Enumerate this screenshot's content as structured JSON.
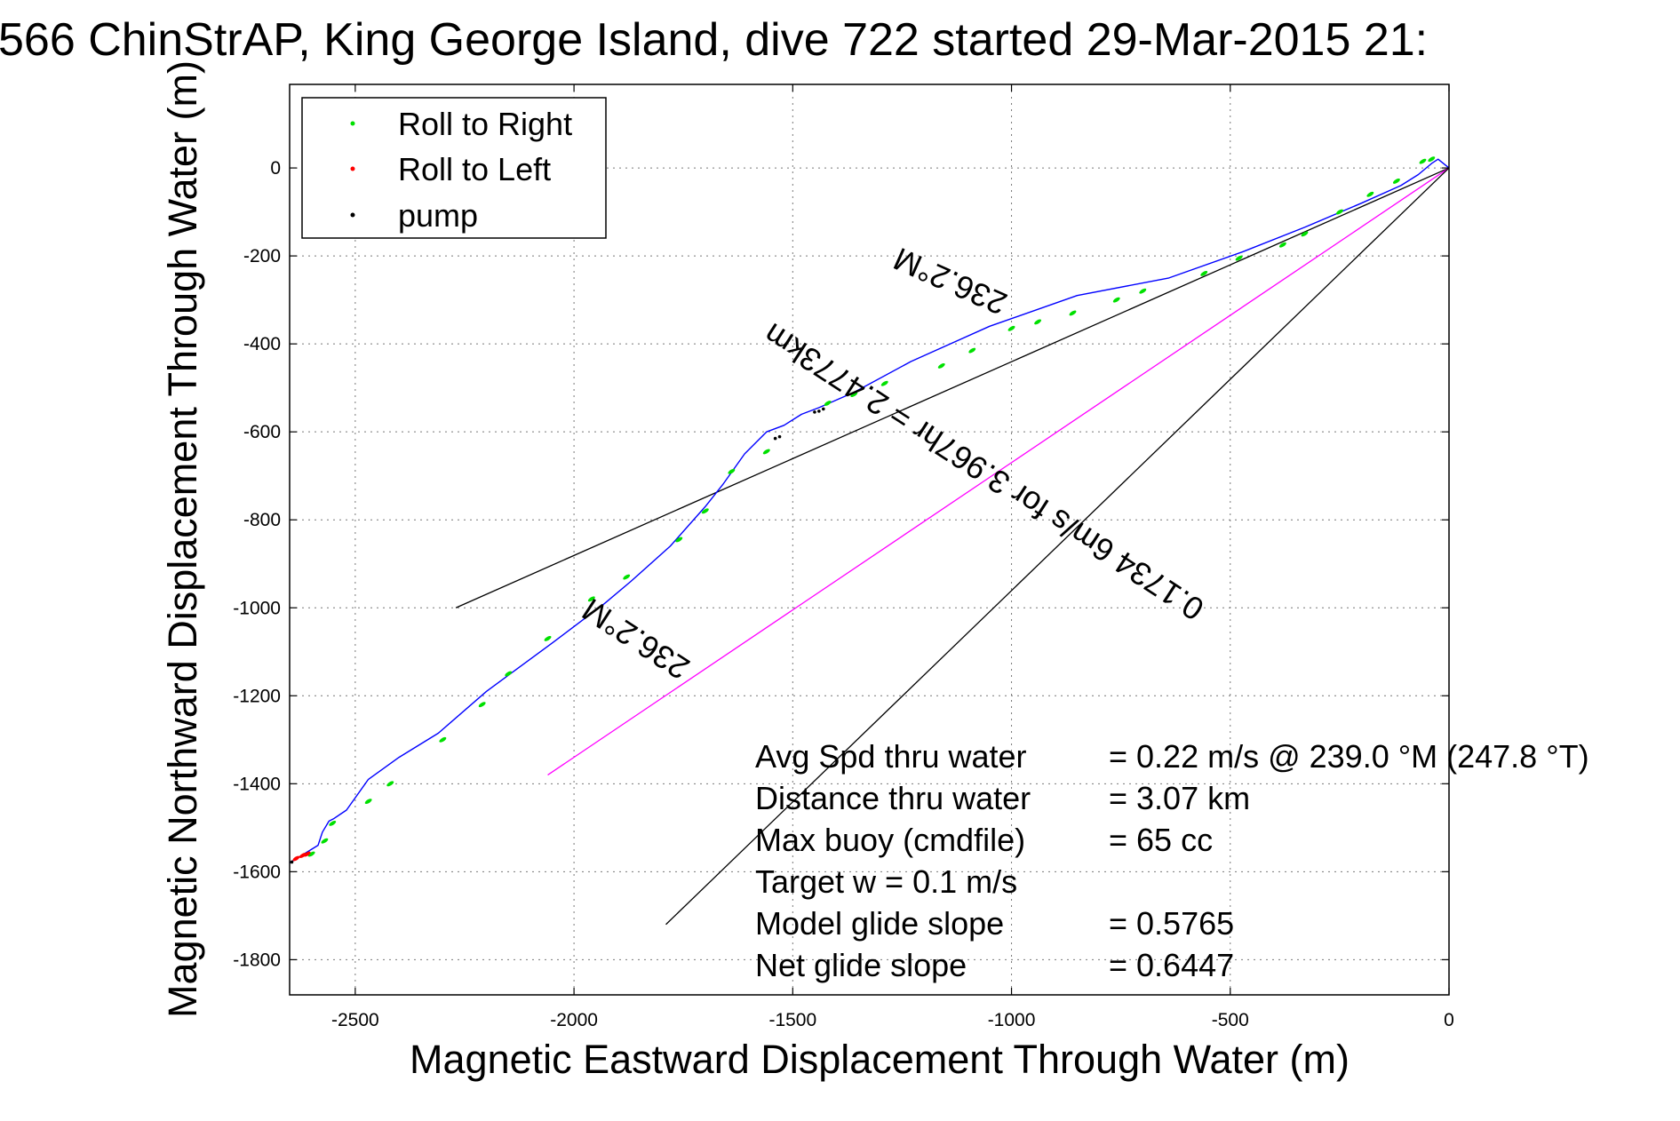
{
  "chart_data": {
    "type": "line",
    "title": "566 ChinStrAP, King George Island, dive 722 started 29-Mar-2015 21:",
    "xlabel": "Magnetic Eastward Displacement Through Water (m)",
    "ylabel": "Magnetic Northward Displacement Through Water (m)",
    "xlim": [
      -2650,
      0
    ],
    "ylim": [
      -1880,
      190
    ],
    "grid": true,
    "x_ticks": [
      -2500,
      -2000,
      -1500,
      -1000,
      -500,
      0
    ],
    "x_tick_labels": [
      "-2500",
      "-2000",
      "-1500",
      "-1000",
      "-500",
      "0"
    ],
    "y_ticks": [
      0,
      -200,
      -400,
      -600,
      -800,
      -1000,
      -1200,
      -1400,
      -1600,
      -1800
    ],
    "y_tick_labels": [
      "0",
      "-200",
      "-400",
      "-600",
      "-800",
      "-1000",
      "-1200",
      "-1400",
      "-1600",
      "-1800"
    ],
    "legend_position": "top-left",
    "legend": [
      {
        "label": "Roll to Right",
        "color": "#00e000"
      },
      {
        "label": "Roll to Left",
        "color": "#ff0000"
      },
      {
        "label": "pump",
        "color": "#000000"
      }
    ],
    "series": [
      {
        "color": "#0000ff",
        "x": [
          -2650,
          -2585,
          -2575,
          -2560,
          -2550,
          -2520,
          -2470,
          -2400,
          -2310,
          -2200,
          -2050,
          -1930,
          -1870,
          -1780,
          -1700,
          -1660,
          -1610,
          -1560,
          -1520,
          -1480,
          -1440,
          -1360,
          -1230,
          -1050,
          -850,
          -640,
          -470,
          -330,
          -200,
          -110,
          -70,
          -40,
          -25,
          0
        ],
        "y": [
          -1580,
          -1540,
          -1510,
          -1485,
          -1480,
          -1460,
          -1390,
          -1340,
          -1285,
          -1190,
          -1080,
          -990,
          -940,
          -860,
          -770,
          -720,
          -650,
          -600,
          -585,
          -560,
          -545,
          -510,
          -440,
          -360,
          -290,
          -250,
          -190,
          -135,
          -80,
          -40,
          -15,
          10,
          20,
          0
        ]
      }
    ],
    "reference_lines": [
      {
        "color": "#000000",
        "x": [
          0,
          -2270
        ],
        "y": [
          0,
          -1000
        ]
      },
      {
        "color": "#ff00ff",
        "x": [
          0,
          -2060
        ],
        "y": [
          0,
          -1380
        ]
      },
      {
        "color": "#000000",
        "x": [
          0,
          -1790
        ],
        "y": [
          0,
          -1720
        ]
      }
    ],
    "markers": {
      "roll_right": {
        "color": "#00e000",
        "x": [
          -2600,
          -2570,
          -2552,
          -2470,
          -2420,
          -2300,
          -2210,
          -2150,
          -2060,
          -1960,
          -1880,
          -1760,
          -1700,
          -1640,
          -1560,
          -1420,
          -1360,
          -1290,
          -1160,
          -1090,
          -1000,
          -940,
          -860,
          -760,
          -700,
          -560,
          -480,
          -380,
          -330,
          -250,
          -180,
          -120,
          -60,
          -40
        ],
        "y": [
          -1560,
          -1530,
          -1490,
          -1440,
          -1400,
          -1300,
          -1220,
          -1150,
          -1070,
          -980,
          -930,
          -845,
          -780,
          -690,
          -645,
          -535,
          -515,
          -490,
          -450,
          -415,
          -365,
          -350,
          -330,
          -300,
          -280,
          -240,
          -205,
          -175,
          -150,
          -100,
          -60,
          -30,
          15,
          20
        ]
      },
      "roll_left": {
        "color": "#ff0000",
        "x": [
          -2635,
          -2620,
          -2610
        ],
        "y": [
          -1570,
          -1563,
          -1560
        ]
      },
      "pump": {
        "color": "#000000",
        "x": [
          -2645,
          -1450,
          -1440,
          -1430,
          -1540,
          -1530
        ],
        "y": [
          -1578,
          -555,
          -553,
          -548,
          -615,
          -611
        ]
      }
    },
    "line_annotations": [
      "236.2°M",
      "0.1734 6m/s for 3.967hr = 2.4773km",
      "236.2°M"
    ],
    "summary": {
      "lines": [
        {
          "label": "Avg Spd thru water",
          "value": "=  0.22 m/s @ 239.0 °M (247.8 °T)"
        },
        {
          "label": "Distance thru water",
          "value": "=  3.07 km"
        },
        {
          "label": "Max buoy (cmdfile)",
          "value": "= 65 cc"
        },
        {
          "label": "Target w    = 0.1 m/s",
          "value": ""
        },
        {
          "label": "Model glide slope",
          "value": "= 0.5765"
        },
        {
          "label": "Net glide slope",
          "value": "= 0.6447"
        }
      ]
    }
  }
}
